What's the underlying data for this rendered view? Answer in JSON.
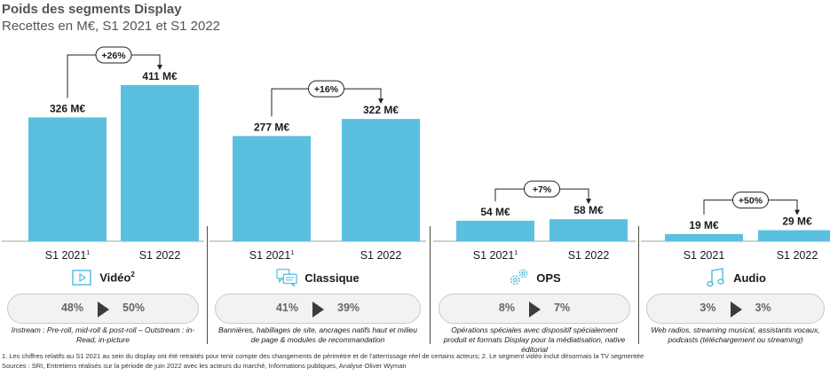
{
  "title": "Poids des segments Display",
  "subtitle": "Recettes en M€, S1 2021 et S1 2022",
  "chart_data": {
    "type": "bar",
    "title": "Poids des segments Display",
    "subtitle": "Recettes en M€, S1 2021 et S1 2022",
    "unit": "M€",
    "ylim": [
      0,
      420
    ],
    "grid": false,
    "bar_color": "#5bc0e0",
    "panels": [
      {
        "segment": "Vidéo",
        "segment_sup": "2",
        "icon": "video-play-icon",
        "categories": [
          "S1 2021",
          "S1 2022"
        ],
        "category_sups": [
          "1",
          ""
        ],
        "values": [
          326,
          411
        ],
        "value_labels": [
          "326 M€",
          "411 M€"
        ],
        "growth": "+26%",
        "share": [
          "48%",
          "50%"
        ],
        "description": "Instream : Pre-roll, mid-roll & post-roll – Outstream : in-Read, in-picture"
      },
      {
        "segment": "Classique",
        "segment_sup": "",
        "icon": "chat-bubbles-icon",
        "categories": [
          "S1 2021",
          "S1 2022"
        ],
        "category_sups": [
          "1",
          ""
        ],
        "values": [
          277,
          322
        ],
        "value_labels": [
          "277 M€",
          "322 M€"
        ],
        "growth": "+16%",
        "share": [
          "41%",
          "39%"
        ],
        "description": "Bannières, habillages de site, ancrages natifs haut et milieu de page & modules de recommandation"
      },
      {
        "segment": "OPS",
        "segment_sup": "",
        "icon": "gears-icon",
        "categories": [
          "S1 2021",
          "S1 2022"
        ],
        "category_sups": [
          "1",
          ""
        ],
        "values": [
          54,
          58
        ],
        "value_labels": [
          "54 M€",
          "58 M€"
        ],
        "growth": "+7%",
        "share": [
          "8%",
          "7%"
        ],
        "description": "Opérations spéciales avec dispositif spécialement produit et formats Display pour la médiatisation, native éditorial"
      },
      {
        "segment": "Audio",
        "segment_sup": "",
        "icon": "music-note-icon",
        "categories": [
          "S1 2021",
          "S1 2022"
        ],
        "category_sups": [
          "",
          ""
        ],
        "values": [
          19,
          29
        ],
        "value_labels": [
          "19 M€",
          "29 M€"
        ],
        "growth": "+50%",
        "share": [
          "3%",
          "3%"
        ],
        "description": "Web radios, streaming musical, assistants vocaux, podcasts (téléchargement ou streaming)"
      }
    ]
  },
  "footnotes": {
    "line1": "1. Les chiffres relatifs au S1 2021 au sein du display ont été retraités pour tenir compte des changements de périmètre et de l'atterrissage réel de certains acteurs; 2. Le segment vidéo inclut désormais la TV segmentée",
    "line2": "Sources : SRI, Entretiens réalisés sur la période de juin 2022 avec les acteurs du marché, Informations publiques, Analyse Oliver Wyman"
  }
}
